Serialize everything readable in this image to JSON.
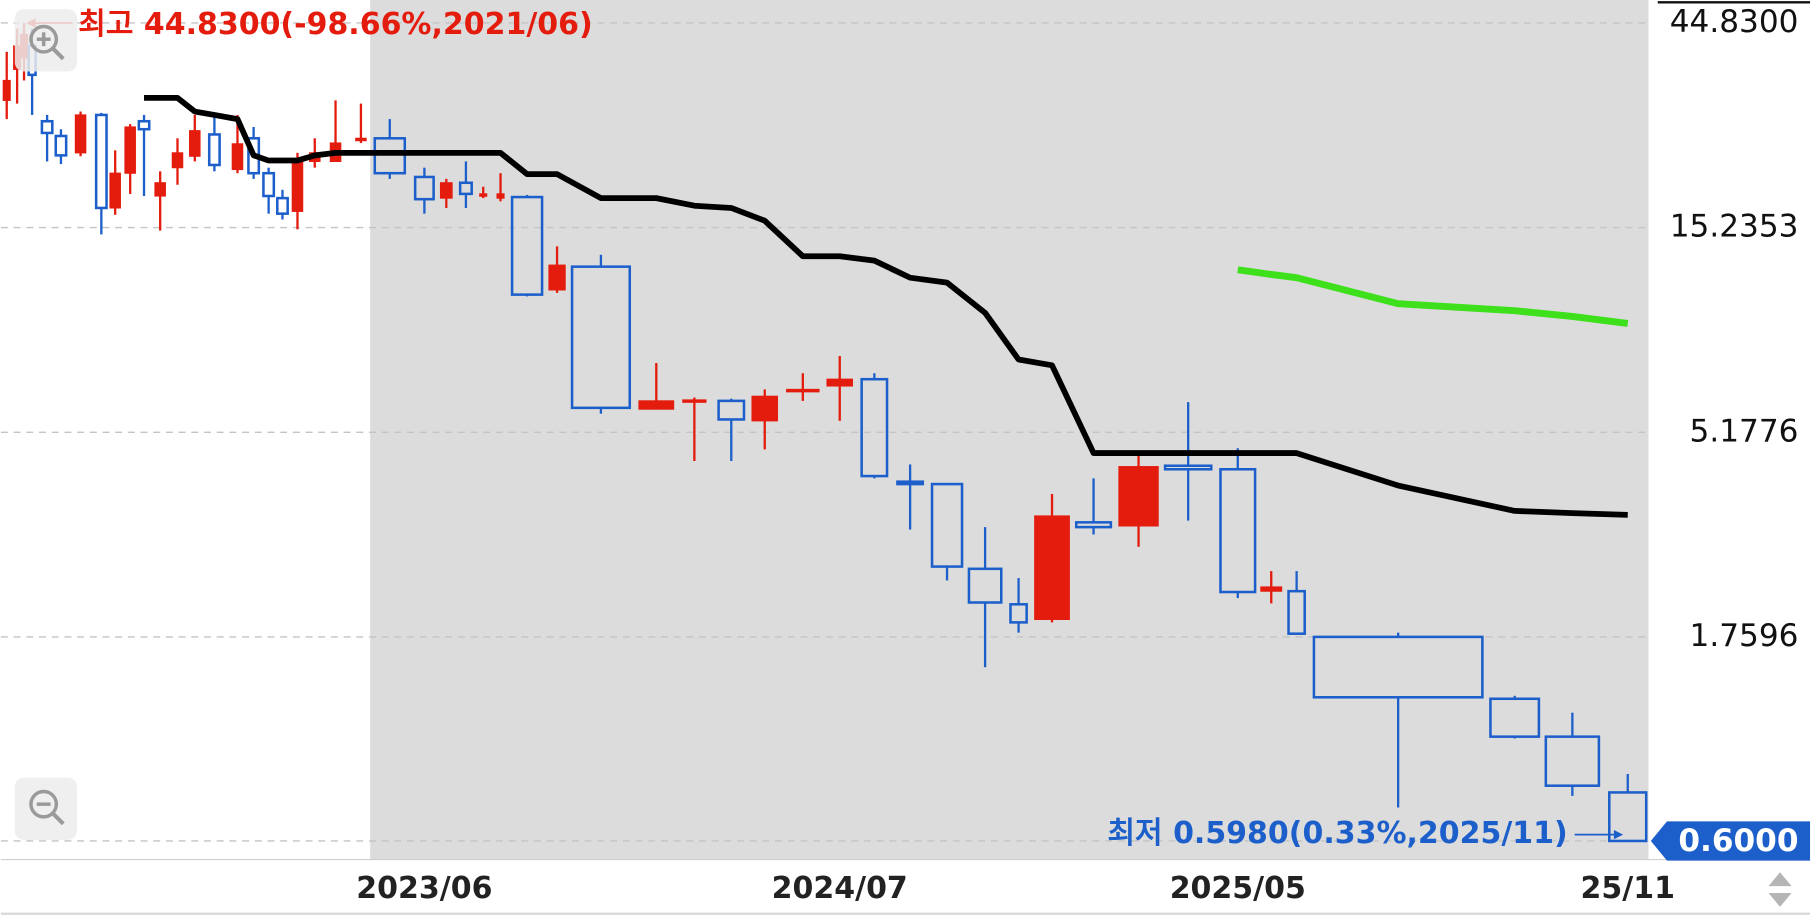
{
  "chart_data": {
    "type": "candlestick",
    "log_scale": true,
    "grid": true,
    "ylim": [
      0.544,
      50.6
    ],
    "yticks": [
      {
        "value": 44.83,
        "label": "44.8300"
      },
      {
        "value": 15.2353,
        "label": "15.2353"
      },
      {
        "value": 5.1776,
        "label": "5.1776"
      },
      {
        "value": 1.7596,
        "label": "1.7596"
      }
    ],
    "last_price": {
      "value": 0.6,
      "label": "0.6000"
    },
    "annotations": {
      "high": "최고 44.8300(-98.66%,2021/06)",
      "low": "최저 0.5980(0.33%,2025/11)"
    },
    "categories": [
      null,
      null,
      null,
      null,
      null,
      null,
      null,
      null,
      null,
      null,
      null,
      null,
      null,
      null,
      null,
      null,
      null,
      null,
      null,
      null,
      null,
      null,
      null,
      null,
      "2023/06",
      null,
      null,
      null,
      null,
      null,
      null,
      null,
      null,
      null,
      null,
      null,
      null,
      "2024/07",
      null,
      null,
      null,
      null,
      null,
      null,
      null,
      null,
      null,
      "2025/05",
      null,
      null,
      null,
      null,
      null,
      "25/11"
    ],
    "candles": {
      "up_color": "#e41c0e",
      "down_color": "#1c5fcb",
      "open": [
        29.8,
        35.1,
        37.3,
        39.7,
        26.7,
        24.7,
        22.6,
        27.6,
        16.9,
        20.3,
        26.7,
        18.0,
        20.9,
        22.2,
        24.9,
        20.7,
        24.4,
        20.3,
        17.8,
        16.6,
        21.6,
        21.6,
        24.1,
        24.4,
        19.9,
        17.8,
        19.3,
        18.0,
        17.8,
        17.9,
        10.97,
        12.4,
        5.85,
        6.11,
        6.11,
        5.5,
        6.41,
        6.61,
        6.85,
        3.99,
        3.94,
        2.52,
        2.09,
        1.93,
        3.22,
        3.16,
        4.34,
        4.26,
        2.24,
        2.24,
        1.76,
        1.27,
        1.04,
        0.775
      ],
      "high": [
        38.5,
        43.5,
        44.83,
        43.5,
        27.6,
        25.6,
        28.1,
        27.9,
        22.9,
        26.3,
        27.6,
        20.5,
        24.4,
        27.6,
        27.9,
        27.6,
        25.9,
        20.9,
        18.6,
        22.6,
        24.4,
        29.8,
        29.3,
        27.0,
        20.9,
        19.7,
        21.6,
        18.9,
        20.3,
        18.1,
        13.8,
        13.2,
        7.46,
        6.22,
        6.18,
        6.49,
        7.07,
        7.74,
        7.07,
        4.37,
        3.94,
        3.14,
        2.4,
        3.74,
        4.06,
        4.67,
        6.07,
        4.76,
        2.49,
        2.49,
        1.8,
        1.29,
        1.18,
        0.854
      ],
      "low": [
        27.0,
        29.3,
        33.1,
        27.6,
        21.6,
        21.3,
        22.2,
        14.7,
        16.3,
        18.2,
        18.0,
        15.0,
        19.1,
        21.6,
        20.5,
        20.3,
        19.7,
        16.4,
        15.9,
        15.1,
        20.9,
        21.6,
        23.8,
        19.7,
        16.4,
        16.9,
        16.9,
        17.8,
        17.5,
        10.6,
        10.8,
        5.71,
        5.85,
        4.45,
        4.45,
        4.73,
        6.11,
        5.5,
        4.06,
        3.1,
        2.37,
        1.5,
        1.8,
        1.9,
        3.02,
        2.83,
        3.25,
        2.16,
        2.1,
        1.79,
        0.716,
        1.03,
        0.761,
        0.598
      ],
      "close": [
        33.1,
        39.7,
        42.2,
        34.1,
        25.1,
        22.3,
        27.6,
        16.9,
        20.3,
        25.9,
        25.6,
        19.3,
        22.6,
        25.4,
        21.2,
        23.7,
        20.3,
        18.0,
        16.4,
        21.9,
        22.6,
        23.8,
        24.4,
        20.3,
        17.7,
        19.3,
        18.2,
        18.2,
        18.2,
        10.7,
        12.5,
        5.89,
        6.11,
        6.14,
        5.54,
        6.26,
        6.49,
        6.85,
        4.11,
        3.94,
        2.55,
        2.11,
        1.9,
        3.33,
        3.14,
        4.32,
        4.26,
        2.23,
        2.29,
        1.79,
        1.28,
        1.04,
        0.803,
        0.6
      ]
    },
    "lines": [
      {
        "color": "#000000",
        "values": [
          null,
          null,
          null,
          null,
          null,
          null,
          null,
          null,
          null,
          null,
          30.2,
          30.2,
          30.2,
          28.1,
          27.6,
          27.0,
          22.3,
          21.7,
          21.7,
          21.7,
          22.3,
          22.6,
          22.6,
          22.6,
          22.6,
          22.6,
          22.6,
          22.6,
          22.6,
          20.2,
          20.2,
          17.8,
          17.8,
          17.1,
          16.9,
          15.8,
          13.1,
          13.1,
          12.8,
          11.7,
          11.4,
          9.72,
          7.6,
          7.37,
          4.64,
          4.64,
          4.64,
          4.64,
          4.64,
          4.64,
          3.91,
          3.42,
          3.38,
          3.35
        ]
      },
      {
        "color": "#3de01b",
        "values": [
          null,
          null,
          null,
          null,
          null,
          null,
          null,
          null,
          null,
          null,
          null,
          null,
          null,
          null,
          null,
          null,
          null,
          null,
          null,
          null,
          null,
          null,
          null,
          null,
          null,
          null,
          null,
          null,
          null,
          null,
          null,
          null,
          null,
          null,
          null,
          null,
          null,
          null,
          null,
          null,
          null,
          null,
          null,
          null,
          null,
          null,
          null,
          12.2,
          11.9,
          11.7,
          10.2,
          9.83,
          9.54,
          9.19
        ]
      }
    ]
  }
}
